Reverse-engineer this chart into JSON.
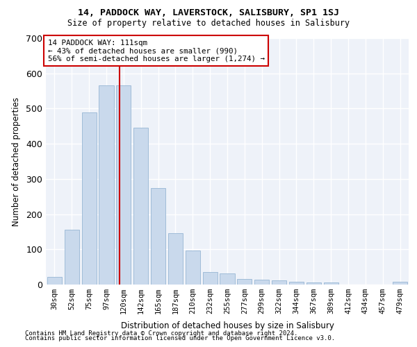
{
  "title1": "14, PADDOCK WAY, LAVERSTOCK, SALISBURY, SP1 1SJ",
  "title2": "Size of property relative to detached houses in Salisbury",
  "xlabel": "Distribution of detached houses by size in Salisbury",
  "ylabel": "Number of detached properties",
  "bin_labels": [
    "30sqm",
    "52sqm",
    "75sqm",
    "97sqm",
    "120sqm",
    "142sqm",
    "165sqm",
    "187sqm",
    "210sqm",
    "232sqm",
    "255sqm",
    "277sqm",
    "299sqm",
    "322sqm",
    "344sqm",
    "367sqm",
    "389sqm",
    "412sqm",
    "434sqm",
    "457sqm",
    "479sqm"
  ],
  "bar_values": [
    22,
    155,
    490,
    565,
    565,
    445,
    275,
    145,
    97,
    35,
    32,
    15,
    14,
    12,
    7,
    5,
    5,
    0,
    0,
    0,
    7
  ],
  "bar_color": "#c9d9ec",
  "bar_edgecolor": "#a0bcd8",
  "bg_color": "#eef2f9",
  "grid_color": "#ffffff",
  "vline_x": 3.78,
  "vline_color": "#cc0000",
  "annotation_text": "14 PADDOCK WAY: 111sqm\n← 43% of detached houses are smaller (990)\n56% of semi-detached houses are larger (1,274) →",
  "annotation_box_edgecolor": "#cc0000",
  "ylim": [
    0,
    700
  ],
  "yticks": [
    0,
    100,
    200,
    300,
    400,
    500,
    600,
    700
  ],
  "footer1": "Contains HM Land Registry data © Crown copyright and database right 2024.",
  "footer2": "Contains public sector information licensed under the Open Government Licence v3.0."
}
